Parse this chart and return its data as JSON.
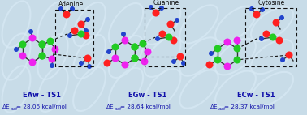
{
  "bg_color": "#c8dce8",
  "bg_left": "#b0cede",
  "bg_right": "#d0e0ec",
  "title_adenine": "Adenine",
  "title_guanine": "Guanine",
  "title_cytosine": "Cytosine",
  "label1": "EAw - TS1",
  "label2": "EGw - TS1",
  "label3": "ECw - TS1",
  "val1": "28.06",
  "val2": "28.64",
  "val3": "28.37",
  "fig_width": 3.78,
  "fig_height": 1.42,
  "dpi": 100,
  "col_O": "#ff2020",
  "col_C": "#22cc22",
  "col_N": "#ee22ee",
  "col_H": "#2244cc",
  "col_bond": "#333333",
  "col_dash": "#111111",
  "col_label": "#1a1acc",
  "col_title": "#111111"
}
